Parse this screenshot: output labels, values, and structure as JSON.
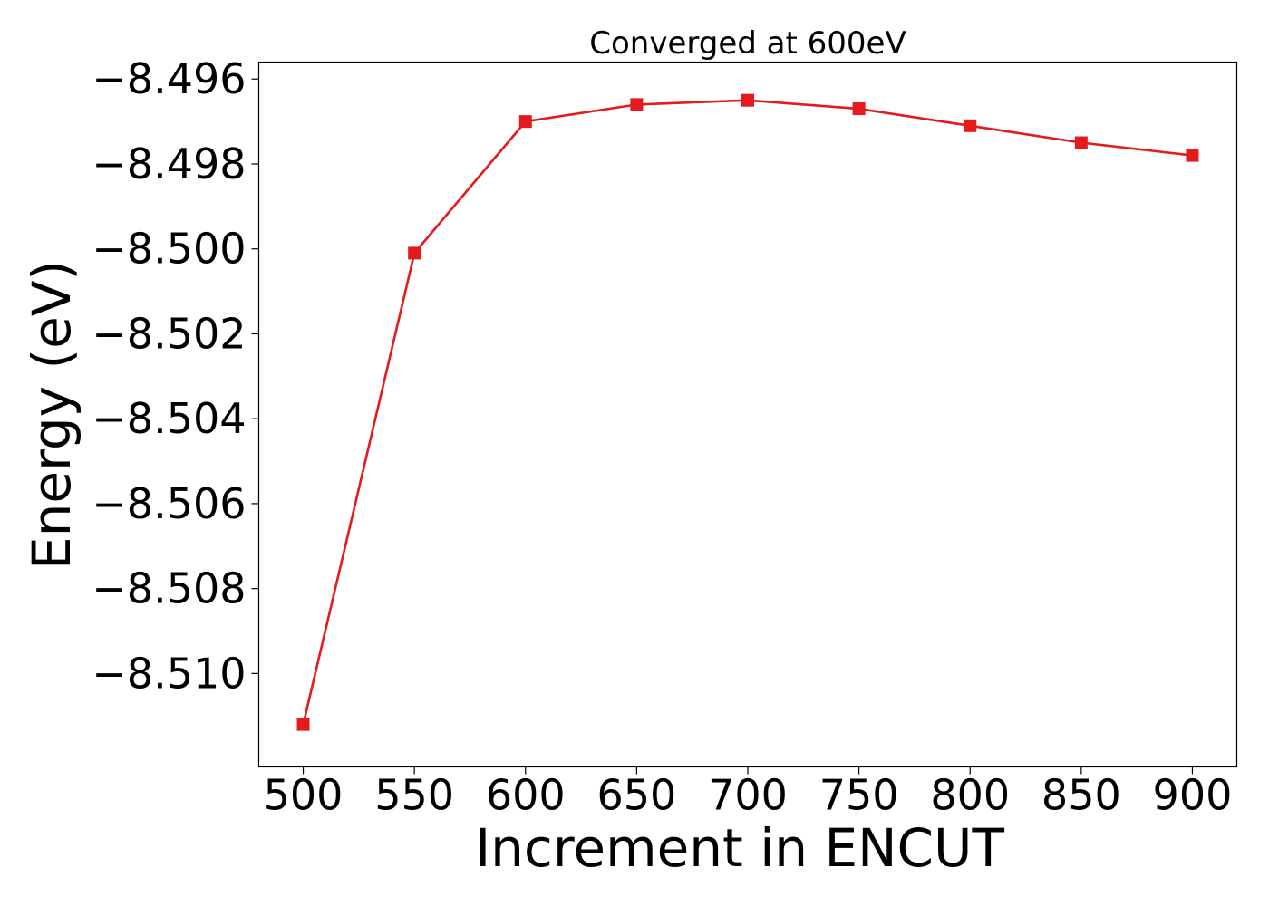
{
  "chart_data": {
    "type": "line",
    "title": "Converged at 600eV",
    "xlabel": "Increment in ENCUT",
    "ylabel": "Energy (eV)",
    "x": [
      500,
      550,
      600,
      650,
      700,
      750,
      800,
      850,
      900
    ],
    "xticks": [
      "500",
      "550",
      "600",
      "650",
      "700",
      "750",
      "800",
      "850",
      "900"
    ],
    "yticks": [
      {
        "value": -8.496,
        "label": "−8.496"
      },
      {
        "value": -8.498,
        "label": "−8.498"
      },
      {
        "value": -8.5,
        "label": "−8.500"
      },
      {
        "value": -8.502,
        "label": "−8.502"
      },
      {
        "value": -8.504,
        "label": "−8.504"
      },
      {
        "value": -8.506,
        "label": "−8.506"
      },
      {
        "value": -8.508,
        "label": "−8.508"
      },
      {
        "value": -8.51,
        "label": "−8.510"
      }
    ],
    "xlim": [
      480,
      920
    ],
    "ylim": [
      -8.5122,
      -8.4956
    ],
    "grid": false,
    "series": [
      {
        "color": "#e41a1c",
        "marker": "square",
        "values": [
          -8.5112,
          -8.5001,
          -8.497,
          -8.4966,
          -8.4965,
          -8.4967,
          -8.4971,
          -8.4975,
          -8.4978
        ]
      }
    ]
  }
}
